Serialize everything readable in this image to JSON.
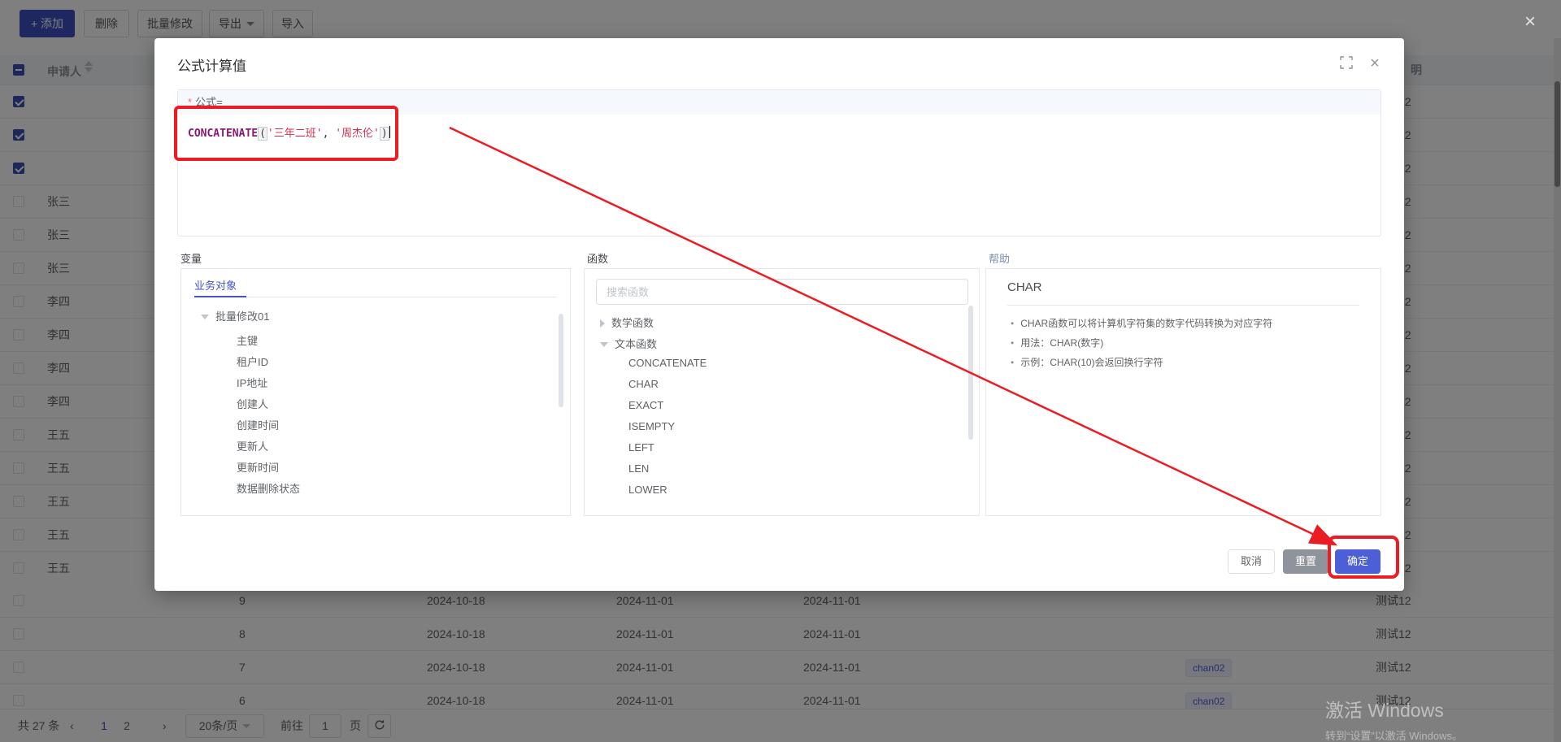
{
  "colors": {
    "primary": "#3d4fc1",
    "checkbox": "#3d4fb5",
    "annotation_red": "#ec1c24",
    "tag_text": "#4c5fd6",
    "ok_button": "#4c5fd6",
    "reset_button": "#8f939b"
  },
  "toolbar": {
    "add": "添加",
    "delete": "删除",
    "batch_edit": "批量修改",
    "export": "导出",
    "import": "导入"
  },
  "table": {
    "headers": {
      "applicant": "申请人",
      "right_fragment": "明"
    },
    "rows": [
      {
        "checked": true,
        "name": "",
        "num": "",
        "d1": "",
        "d2": "",
        "d3": "",
        "tag": "",
        "label": "测试12"
      },
      {
        "checked": true,
        "name": "",
        "num": "",
        "d1": "",
        "d2": "",
        "d3": "",
        "tag": "",
        "label": "测试12"
      },
      {
        "checked": true,
        "name": "",
        "num": "",
        "d1": "",
        "d2": "",
        "d3": "",
        "tag": "",
        "label": "测试12"
      },
      {
        "checked": false,
        "name": "张三",
        "num": "",
        "d1": "",
        "d2": "",
        "d3": "",
        "tag": "",
        "label": "测试12"
      },
      {
        "checked": false,
        "name": "张三",
        "num": "",
        "d1": "",
        "d2": "",
        "d3": "",
        "tag": "",
        "label": "测试12"
      },
      {
        "checked": false,
        "name": "张三",
        "num": "",
        "d1": "",
        "d2": "",
        "d3": "",
        "tag": "",
        "label": "测试12"
      },
      {
        "checked": false,
        "name": "李四",
        "num": "",
        "d1": "",
        "d2": "",
        "d3": "",
        "tag": "",
        "label": "测试12"
      },
      {
        "checked": false,
        "name": "李四",
        "num": "",
        "d1": "",
        "d2": "",
        "d3": "",
        "tag": "",
        "label": "测试12"
      },
      {
        "checked": false,
        "name": "李四",
        "num": "",
        "d1": "",
        "d2": "",
        "d3": "",
        "tag": "",
        "label": "测试12"
      },
      {
        "checked": false,
        "name": "李四",
        "num": "",
        "d1": "",
        "d2": "",
        "d3": "",
        "tag": "",
        "label": "测试12"
      },
      {
        "checked": false,
        "name": "王五",
        "num": "",
        "d1": "",
        "d2": "",
        "d3": "",
        "tag": "",
        "label": "测试12"
      },
      {
        "checked": false,
        "name": "王五",
        "num": "",
        "d1": "",
        "d2": "",
        "d3": "",
        "tag": "",
        "label": "测试12"
      },
      {
        "checked": false,
        "name": "王五",
        "num": "",
        "d1": "",
        "d2": "",
        "d3": "",
        "tag": "",
        "label": "测试12"
      },
      {
        "checked": false,
        "name": "王五",
        "num": "",
        "d1": "",
        "d2": "",
        "d3": "",
        "tag": "",
        "label": "测试12"
      },
      {
        "checked": false,
        "name": "王五",
        "num": "",
        "d1": "",
        "d2": "",
        "d3": "",
        "tag": "",
        "label": "测试12"
      },
      {
        "checked": false,
        "name": "",
        "num": "9",
        "d1": "2024-10-18",
        "d2": "2024-11-01",
        "d3": "2024-11-01",
        "tag": "",
        "label": "测试12"
      },
      {
        "checked": false,
        "name": "",
        "num": "8",
        "d1": "2024-10-18",
        "d2": "2024-11-01",
        "d3": "2024-11-01",
        "tag": "",
        "label": "测试12"
      },
      {
        "checked": false,
        "name": "",
        "num": "7",
        "d1": "2024-10-18",
        "d2": "2024-11-01",
        "d3": "2024-11-01",
        "tag": "chan02",
        "label": "测试12"
      },
      {
        "checked": false,
        "name": "",
        "num": "6",
        "d1": "2024-10-18",
        "d2": "2024-11-01",
        "d3": "2024-11-01",
        "tag": "chan02",
        "label": "测试12"
      }
    ]
  },
  "pagination": {
    "total": "共 27 条",
    "pages": [
      "1",
      "2"
    ],
    "current": "1",
    "page_size": "20条/页",
    "goto_prefix": "前往",
    "goto_value": "1",
    "goto_suffix": "页"
  },
  "modal": {
    "title": "公式计算值",
    "formula": {
      "required_mark": "*",
      "label": "公式=",
      "func": "CONCATENATE",
      "lparen": "(",
      "arg1": "'三年二班'",
      "comma": ", ",
      "arg2": "'周杰伦'",
      "rparen": ")"
    },
    "variables": {
      "section": "变量",
      "tab": "业务对象",
      "root": "批量修改01",
      "items": [
        "主键",
        "租户ID",
        "IP地址",
        "创建人",
        "创建时间",
        "更新人",
        "更新时间",
        "数据删除状态"
      ]
    },
    "functions": {
      "section": "函数",
      "search_placeholder": "搜索函数",
      "groups": [
        {
          "label": "数学函数",
          "expanded": false,
          "items": []
        },
        {
          "label": "文本函数",
          "expanded": true,
          "items": [
            "CONCATENATE",
            "CHAR",
            "EXACT",
            "ISEMPTY",
            "LEFT",
            "LEN",
            "LOWER"
          ]
        }
      ]
    },
    "help": {
      "section": "帮助",
      "title": "CHAR",
      "bullets": [
        "CHAR函数可以将计算机字符集的数字代码转换为对应字符",
        "用法：CHAR(数字)",
        "示例：CHAR(10)会返回换行字符"
      ]
    },
    "footer": {
      "cancel": "取消",
      "reset": "重置",
      "ok": "确定"
    }
  },
  "watermark": {
    "line1": "激活 Windows",
    "line2": "转到“设置”以激活 Windows。"
  }
}
